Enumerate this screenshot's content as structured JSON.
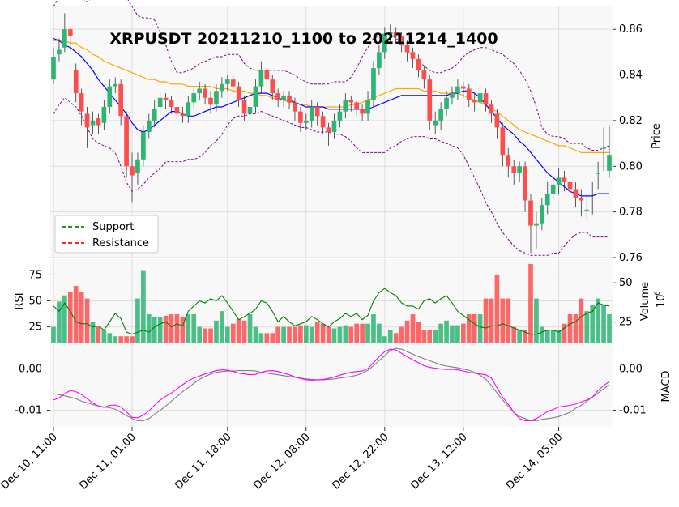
{
  "chart_data": {
    "type": "candlestick",
    "title": "XRPUSDT 20211210_1100 to 20211214_1400",
    "x_tick_labels": [
      "Dec 10, 11:00",
      "Dec 11, 01:00",
      "Dec 11, 18:00",
      "Dec 12, 08:00",
      "Dec 12, 22:00",
      "Dec 13, 12:00",
      "Dec 14, 05:00"
    ],
    "x_tick_index": [
      0,
      14,
      31,
      45,
      59,
      73,
      90
    ],
    "num_candles": 100,
    "price_panel": {
      "ylabel": "Price",
      "ylim": [
        0.76,
        0.87
      ],
      "yticks": [
        "0.76",
        "0.78",
        "0.80",
        "0.82",
        "0.84",
        "0.86"
      ],
      "close": [
        0.848,
        0.851,
        0.86,
        0.857,
        0.832,
        0.824,
        0.817,
        0.82,
        0.818,
        0.826,
        0.835,
        0.836,
        0.822,
        0.8,
        0.796,
        0.803,
        0.815,
        0.82,
        0.825,
        0.83,
        0.829,
        0.826,
        0.823,
        0.822,
        0.828,
        0.832,
        0.834,
        0.83,
        0.827,
        0.833,
        0.836,
        0.838,
        0.835,
        0.829,
        0.823,
        0.826,
        0.835,
        0.842,
        0.838,
        0.832,
        0.829,
        0.831,
        0.828,
        0.824,
        0.819,
        0.82,
        0.826,
        0.822,
        0.817,
        0.815,
        0.82,
        0.824,
        0.829,
        0.828,
        0.825,
        0.823,
        0.829,
        0.843,
        0.85,
        0.858,
        0.859,
        0.857,
        0.853,
        0.85,
        0.847,
        0.842,
        0.838,
        0.82,
        0.82,
        0.825,
        0.83,
        0.832,
        0.835,
        0.834,
        0.829,
        0.828,
        0.832,
        0.827,
        0.823,
        0.817,
        0.805,
        0.8,
        0.797,
        0.8,
        0.785,
        0.774,
        0.775,
        0.783,
        0.788,
        0.792,
        0.795,
        0.793,
        0.79,
        0.786,
        0.785,
        0.781,
        0.788,
        0.797,
        0.808,
        0.805
      ],
      "open": [
        0.838,
        0.849,
        0.852,
        0.86,
        0.842,
        0.832,
        0.823,
        0.818,
        0.821,
        0.819,
        0.826,
        0.835,
        0.836,
        0.822,
        0.8,
        0.797,
        0.803,
        0.815,
        0.82,
        0.826,
        0.83,
        0.829,
        0.826,
        0.823,
        0.822,
        0.828,
        0.832,
        0.834,
        0.83,
        0.827,
        0.833,
        0.836,
        0.838,
        0.835,
        0.829,
        0.823,
        0.826,
        0.835,
        0.842,
        0.838,
        0.832,
        0.829,
        0.831,
        0.828,
        0.824,
        0.819,
        0.82,
        0.826,
        0.822,
        0.817,
        0.815,
        0.82,
        0.824,
        0.829,
        0.828,
        0.825,
        0.823,
        0.829,
        0.843,
        0.85,
        0.858,
        0.859,
        0.857,
        0.853,
        0.85,
        0.847,
        0.842,
        0.838,
        0.818,
        0.82,
        0.825,
        0.83,
        0.832,
        0.835,
        0.834,
        0.829,
        0.828,
        0.832,
        0.827,
        0.823,
        0.817,
        0.805,
        0.8,
        0.797,
        0.8,
        0.785,
        0.774,
        0.775,
        0.783,
        0.788,
        0.792,
        0.795,
        0.793,
        0.79,
        0.786,
        0.781,
        0.788,
        0.797,
        0.808,
        0.798
      ],
      "high": [
        0.852,
        0.856,
        0.867,
        0.861,
        0.845,
        0.834,
        0.826,
        0.824,
        0.823,
        0.829,
        0.838,
        0.839,
        0.838,
        0.824,
        0.806,
        0.806,
        0.818,
        0.823,
        0.829,
        0.833,
        0.832,
        0.831,
        0.828,
        0.826,
        0.831,
        0.835,
        0.837,
        0.836,
        0.833,
        0.836,
        0.839,
        0.84,
        0.84,
        0.837,
        0.831,
        0.829,
        0.838,
        0.846,
        0.843,
        0.84,
        0.834,
        0.833,
        0.833,
        0.83,
        0.826,
        0.823,
        0.829,
        0.828,
        0.824,
        0.819,
        0.823,
        0.827,
        0.832,
        0.831,
        0.829,
        0.827,
        0.833,
        0.846,
        0.853,
        0.861,
        0.862,
        0.861,
        0.859,
        0.855,
        0.852,
        0.849,
        0.844,
        0.84,
        0.824,
        0.828,
        0.833,
        0.835,
        0.838,
        0.837,
        0.836,
        0.832,
        0.835,
        0.834,
        0.829,
        0.825,
        0.819,
        0.808,
        0.803,
        0.802,
        0.802,
        0.788,
        0.78,
        0.786,
        0.793,
        0.795,
        0.799,
        0.798,
        0.796,
        0.793,
        0.79,
        0.788,
        0.793,
        0.802,
        0.817,
        0.818
      ],
      "low": [
        0.836,
        0.846,
        0.85,
        0.852,
        0.828,
        0.818,
        0.808,
        0.814,
        0.814,
        0.816,
        0.823,
        0.832,
        0.818,
        0.795,
        0.784,
        0.792,
        0.8,
        0.812,
        0.817,
        0.822,
        0.825,
        0.823,
        0.82,
        0.819,
        0.819,
        0.825,
        0.829,
        0.827,
        0.823,
        0.824,
        0.83,
        0.833,
        0.832,
        0.826,
        0.82,
        0.82,
        0.823,
        0.832,
        0.834,
        0.829,
        0.826,
        0.826,
        0.825,
        0.82,
        0.815,
        0.816,
        0.817,
        0.818,
        0.814,
        0.809,
        0.812,
        0.817,
        0.821,
        0.824,
        0.822,
        0.82,
        0.82,
        0.826,
        0.84,
        0.847,
        0.854,
        0.854,
        0.85,
        0.846,
        0.843,
        0.839,
        0.834,
        0.816,
        0.814,
        0.816,
        0.822,
        0.827,
        0.829,
        0.83,
        0.826,
        0.824,
        0.825,
        0.824,
        0.819,
        0.812,
        0.8,
        0.795,
        0.792,
        0.793,
        0.78,
        0.762,
        0.764,
        0.772,
        0.779,
        0.785,
        0.788,
        0.789,
        0.785,
        0.782,
        0.778,
        0.777,
        0.779,
        0.79,
        0.798,
        0.795
      ],
      "ma_fast": [
        0.856,
        0.855,
        0.853,
        0.852,
        0.85,
        0.848,
        0.845,
        0.842,
        0.838,
        0.835,
        0.832,
        0.829,
        0.826,
        0.823,
        0.819,
        0.816,
        0.815,
        0.816,
        0.818,
        0.82,
        0.822,
        0.824,
        0.824,
        0.823,
        0.822,
        0.822,
        0.823,
        0.824,
        0.825,
        0.826,
        0.826,
        0.827,
        0.828,
        0.829,
        0.83,
        0.831,
        0.832,
        0.832,
        0.832,
        0.831,
        0.83,
        0.829,
        0.829,
        0.828,
        0.827,
        0.826,
        0.826,
        0.826,
        0.826,
        0.825,
        0.825,
        0.825,
        0.825,
        0.825,
        0.825,
        0.825,
        0.825,
        0.826,
        0.827,
        0.828,
        0.829,
        0.83,
        0.831,
        0.831,
        0.831,
        0.831,
        0.831,
        0.831,
        0.831,
        0.831,
        0.831,
        0.832,
        0.832,
        0.833,
        0.833,
        0.832,
        0.83,
        0.827,
        0.824,
        0.821,
        0.818,
        0.816,
        0.814,
        0.811,
        0.809,
        0.806,
        0.803,
        0.8,
        0.797,
        0.795,
        0.793,
        0.791,
        0.789,
        0.788,
        0.787,
        0.787,
        0.787,
        0.788,
        0.788,
        0.788
      ],
      "ma_slow": [
        0.855,
        0.855,
        0.855,
        0.854,
        0.854,
        0.852,
        0.851,
        0.849,
        0.848,
        0.846,
        0.845,
        0.844,
        0.843,
        0.842,
        0.841,
        0.84,
        0.839,
        0.838,
        0.838,
        0.837,
        0.837,
        0.836,
        0.836,
        0.836,
        0.835,
        0.835,
        0.835,
        0.835,
        0.835,
        0.834,
        0.834,
        0.834,
        0.833,
        0.833,
        0.833,
        0.832,
        0.832,
        0.831,
        0.831,
        0.83,
        0.829,
        0.829,
        0.828,
        0.828,
        0.827,
        0.827,
        0.826,
        0.826,
        0.826,
        0.826,
        0.826,
        0.826,
        0.826,
        0.827,
        0.827,
        0.828,
        0.829,
        0.83,
        0.831,
        0.832,
        0.833,
        0.834,
        0.834,
        0.834,
        0.834,
        0.834,
        0.833,
        0.833,
        0.833,
        0.832,
        0.832,
        0.832,
        0.832,
        0.831,
        0.83,
        0.829,
        0.828,
        0.827,
        0.825,
        0.824,
        0.822,
        0.82,
        0.818,
        0.816,
        0.815,
        0.814,
        0.813,
        0.812,
        0.811,
        0.81,
        0.809,
        0.809,
        0.808,
        0.807,
        0.806,
        0.806,
        0.806,
        0.806,
        0.806,
        0.806
      ],
      "bb_upper": [
        0.87,
        0.874,
        0.878,
        0.88,
        0.878,
        0.874,
        0.872,
        0.874,
        0.876,
        0.879,
        0.881,
        0.879,
        0.877,
        0.874,
        0.87,
        0.866,
        0.865,
        0.865,
        0.864,
        0.859,
        0.853,
        0.846,
        0.841,
        0.841,
        0.842,
        0.843,
        0.845,
        0.846,
        0.847,
        0.848,
        0.848,
        0.849,
        0.849,
        0.849,
        0.845,
        0.843,
        0.842,
        0.842,
        0.842,
        0.842,
        0.842,
        0.842,
        0.841,
        0.84,
        0.838,
        0.837,
        0.836,
        0.836,
        0.836,
        0.836,
        0.837,
        0.837,
        0.837,
        0.839,
        0.843,
        0.848,
        0.852,
        0.856,
        0.857,
        0.858,
        0.858,
        0.856,
        0.854,
        0.851,
        0.848,
        0.846,
        0.844,
        0.842,
        0.841,
        0.841,
        0.842,
        0.843,
        0.845,
        0.848,
        0.85,
        0.851,
        0.852,
        0.852,
        0.851,
        0.85,
        0.849,
        0.847,
        0.845,
        0.842,
        0.838,
        0.833,
        0.826,
        0.817,
        0.814,
        0.813,
        0.813,
        0.812,
        0.81,
        0.81,
        0.81,
        0.808,
        0.807,
        0.807,
        0.808,
        0.809
      ],
      "bb_lower": [
        0.823,
        0.827,
        0.83,
        0.828,
        0.826,
        0.822,
        0.817,
        0.812,
        0.81,
        0.809,
        0.808,
        0.806,
        0.8,
        0.793,
        0.789,
        0.79,
        0.792,
        0.795,
        0.797,
        0.799,
        0.802,
        0.802,
        0.802,
        0.802,
        0.803,
        0.803,
        0.804,
        0.806,
        0.809,
        0.811,
        0.814,
        0.818,
        0.821,
        0.822,
        0.822,
        0.823,
        0.823,
        0.824,
        0.823,
        0.822,
        0.821,
        0.82,
        0.819,
        0.818,
        0.817,
        0.817,
        0.816,
        0.815,
        0.815,
        0.815,
        0.814,
        0.814,
        0.813,
        0.811,
        0.808,
        0.806,
        0.806,
        0.806,
        0.806,
        0.806,
        0.808,
        0.809,
        0.811,
        0.812,
        0.813,
        0.813,
        0.813,
        0.812,
        0.812,
        0.811,
        0.81,
        0.809,
        0.808,
        0.805,
        0.8,
        0.795,
        0.79,
        0.784,
        0.78,
        0.775,
        0.771,
        0.768,
        0.765,
        0.763,
        0.762,
        0.761,
        0.761,
        0.761,
        0.761,
        0.762,
        0.762,
        0.765,
        0.768,
        0.77,
        0.771,
        0.771,
        0.769,
        0.769,
        0.769,
        0.769
      ]
    },
    "legend": [
      {
        "label": "Support",
        "color": "#008000",
        "style": "dashed"
      },
      {
        "label": "Resistance",
        "color": "#ff0000",
        "style": "dashed"
      }
    ],
    "volume_panel": {
      "ylabel": "Volume",
      "unit_label": "10",
      "unit_exponent": "6",
      "ylim": [
        12,
        65
      ],
      "yticks": [
        "25",
        "50"
      ],
      "values": [
        22,
        38,
        42,
        44,
        48,
        44,
        40,
        25,
        22,
        20,
        18,
        16,
        16,
        16,
        16,
        40,
        58,
        30,
        28,
        28,
        29,
        30,
        30,
        28,
        30,
        30,
        22,
        21,
        21,
        26,
        32,
        22,
        24,
        27,
        26,
        30,
        22,
        18,
        18,
        18,
        22,
        22,
        22,
        22,
        23,
        23,
        22,
        25,
        24,
        22,
        21,
        22,
        23,
        22,
        24,
        24,
        24,
        30,
        24,
        16,
        20,
        18,
        22,
        26,
        30,
        25,
        20,
        20,
        20,
        24,
        26,
        23,
        23,
        24,
        30,
        30,
        30,
        40,
        40,
        55,
        40,
        40,
        22,
        20,
        20,
        62,
        40,
        22,
        20,
        20,
        20,
        24,
        30,
        30,
        40,
        32,
        36,
        40,
        36,
        30
      ]
    },
    "rsi_panel": {
      "ylabel": "RSI",
      "ylim": [
        10,
        90
      ],
      "yticks": [
        "25",
        "50",
        "75"
      ],
      "values": [
        45,
        40,
        48,
        40,
        30,
        28,
        28,
        25,
        26,
        22,
        30,
        38,
        33,
        20,
        18,
        20,
        22,
        20,
        25,
        28,
        30,
        25,
        28,
        26,
        40,
        45,
        50,
        48,
        52,
        50,
        55,
        48,
        40,
        32,
        35,
        38,
        42,
        50,
        48,
        40,
        30,
        35,
        30,
        26,
        28,
        30,
        35,
        32,
        28,
        25,
        30,
        33,
        38,
        35,
        38,
        32,
        36,
        50,
        58,
        62,
        58,
        55,
        48,
        45,
        45,
        42,
        50,
        52,
        48,
        52,
        55,
        48,
        40,
        36,
        32,
        28,
        25,
        24,
        26,
        26,
        28,
        26,
        24,
        22,
        20,
        18,
        18,
        20,
        22,
        22,
        20,
        24,
        28,
        30,
        35,
        38,
        40,
        48,
        46,
        45
      ]
    },
    "macd_panel": {
      "ylabel": "MACD",
      "ylim": [
        -0.014,
        0.006
      ],
      "yticks": [
        "0.00",
        "-0.01"
      ],
      "macd": [
        -0.0075,
        -0.007,
        -0.006,
        -0.0052,
        -0.0055,
        -0.0062,
        -0.0072,
        -0.0082,
        -0.009,
        -0.0093,
        -0.0088,
        -0.0087,
        -0.0092,
        -0.0104,
        -0.0117,
        -0.0118,
        -0.0112,
        -0.0101,
        -0.0088,
        -0.0075,
        -0.0066,
        -0.0058,
        -0.0048,
        -0.0038,
        -0.0029,
        -0.0022,
        -0.0017,
        -0.0012,
        -0.0008,
        -0.0004,
        -0.0002,
        -0.0003,
        -0.0006,
        -0.001,
        -0.0012,
        -0.0014,
        -0.0013,
        -0.0008,
        -0.0005,
        -0.0004,
        -0.0006,
        -0.001,
        -0.0014,
        -0.0019,
        -0.0023,
        -0.0026,
        -0.0027,
        -0.0026,
        -0.0025,
        -0.0023,
        -0.0019,
        -0.0015,
        -0.0011,
        -0.0008,
        -0.0006,
        -0.0005,
        0.0001,
        0.0015,
        0.003,
        0.0042,
        0.0048,
        0.0046,
        0.0038,
        0.003,
        0.0022,
        0.0015,
        0.0008,
        0.0004,
        0.0002,
        0.0,
        -0.0001,
        -0.0001,
        -0.0002,
        -0.0005,
        -0.0008,
        -0.001,
        -0.0012,
        -0.0014,
        -0.0022,
        -0.0045,
        -0.0068,
        -0.0085,
        -0.0105,
        -0.012,
        -0.0125,
        -0.0125,
        -0.012,
        -0.0112,
        -0.0103,
        -0.0098,
        -0.0092,
        -0.009,
        -0.0088,
        -0.0085,
        -0.008,
        -0.0075,
        -0.0068,
        -0.0052,
        -0.004,
        -0.003
      ],
      "signal": [
        -0.006,
        -0.0062,
        -0.0065,
        -0.0068,
        -0.0072,
        -0.0078,
        -0.0082,
        -0.0086,
        -0.0089,
        -0.0092,
        -0.0094,
        -0.0097,
        -0.0105,
        -0.0113,
        -0.012,
        -0.0125,
        -0.0125,
        -0.012,
        -0.011,
        -0.01,
        -0.009,
        -0.0078,
        -0.0066,
        -0.0055,
        -0.0045,
        -0.0035,
        -0.0025,
        -0.0018,
        -0.0012,
        -0.0008,
        -0.0006,
        -0.0005,
        -0.0005,
        -0.0004,
        -0.0004,
        -0.0004,
        -0.0005,
        -0.0008,
        -0.001,
        -0.0012,
        -0.0014,
        -0.0016,
        -0.0018,
        -0.002,
        -0.0022,
        -0.0024,
        -0.0025,
        -0.0026,
        -0.0026,
        -0.0025,
        -0.0024,
        -0.0022,
        -0.002,
        -0.0018,
        -0.0015,
        -0.001,
        -0.0003,
        0.0008,
        0.002,
        0.0032,
        0.0045,
        0.005,
        0.0048,
        0.0042,
        0.0036,
        0.003,
        0.0025,
        0.002,
        0.0015,
        0.001,
        0.0007,
        0.0005,
        0.0003,
        0.0,
        -0.0003,
        -0.0008,
        -0.0015,
        -0.0025,
        -0.004,
        -0.0058,
        -0.0075,
        -0.009,
        -0.0105,
        -0.0115,
        -0.012,
        -0.0125,
        -0.0125,
        -0.0122,
        -0.012,
        -0.0118,
        -0.0115,
        -0.011,
        -0.0105,
        -0.0095,
        -0.0088,
        -0.0078,
        -0.0068,
        -0.0058,
        -0.0048,
        -0.0038
      ]
    },
    "colors": {
      "up": "#26a69a",
      "up_candle": "#2db574",
      "down": "#ff4d4d",
      "ma_fast": "#0000ff",
      "ma_slow": "#ffa500",
      "bollinger": "#800080",
      "rsi": "#008000",
      "macd": "#ff00ff",
      "signal": "#808080",
      "panel_bg": "#f8f8f8",
      "grid": "#dddddd"
    }
  }
}
